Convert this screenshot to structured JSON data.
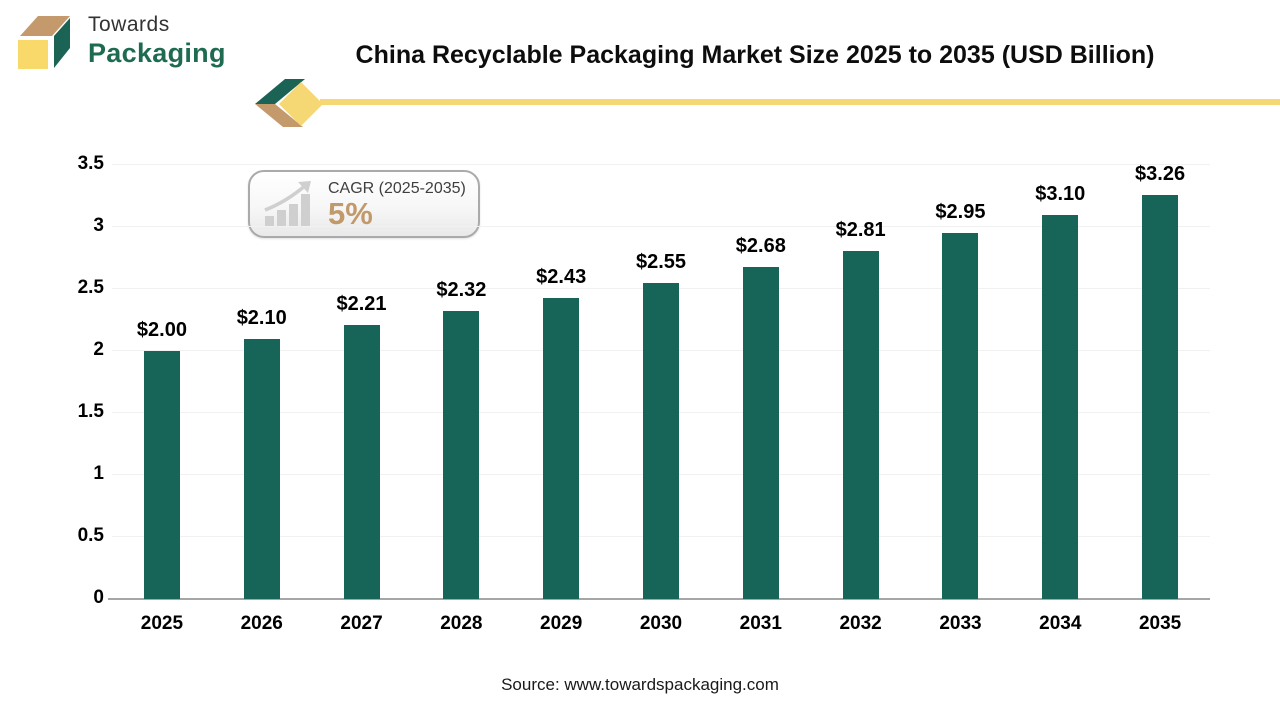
{
  "header": {
    "logo_line1": "Towards",
    "logo_line2": "Packaging",
    "title": "China Recyclable Packaging Market Size 2025 to 2035 (USD Billion)"
  },
  "badge": {
    "label": "CAGR (2025-2035)",
    "value": "5%"
  },
  "chart_data": {
    "type": "bar",
    "title": "China Recyclable Packaging Market Size 2025 to 2035 (USD Billion)",
    "categories": [
      "2025",
      "2026",
      "2027",
      "2028",
      "2029",
      "2030",
      "2031",
      "2032",
      "2033",
      "2034",
      "2035"
    ],
    "values": [
      2.0,
      2.1,
      2.21,
      2.32,
      2.43,
      2.55,
      2.68,
      2.81,
      2.95,
      3.1,
      3.26
    ],
    "value_labels": [
      "$2.00",
      "$2.10",
      "$2.21",
      "$2.32",
      "$2.43",
      "$2.55",
      "$2.68",
      "$2.81",
      "$2.95",
      "$3.10",
      "$3.26"
    ],
    "xlabel": "",
    "ylabel": "",
    "ylim": [
      0,
      3.5
    ],
    "ytick_step": 0.5,
    "ytick_labels": [
      "0",
      "0.5",
      "1",
      "1.5",
      "2",
      "2.5",
      "3",
      "3.5"
    ],
    "grid": true,
    "legend": false,
    "bar_color": "#166558"
  },
  "footer": {
    "source": "Source: www.towardspackaging.com"
  },
  "colors": {
    "bar": "#166558",
    "accent_yellow": "#F5D873",
    "logo_green": "#1F6B52",
    "logo_tan": "#C49A6C",
    "logo_yellow": "#F8D96A",
    "cagr_value": "#C2996B",
    "axis_line": "#a6a6a6",
    "gridline": "#f1f1f1"
  }
}
